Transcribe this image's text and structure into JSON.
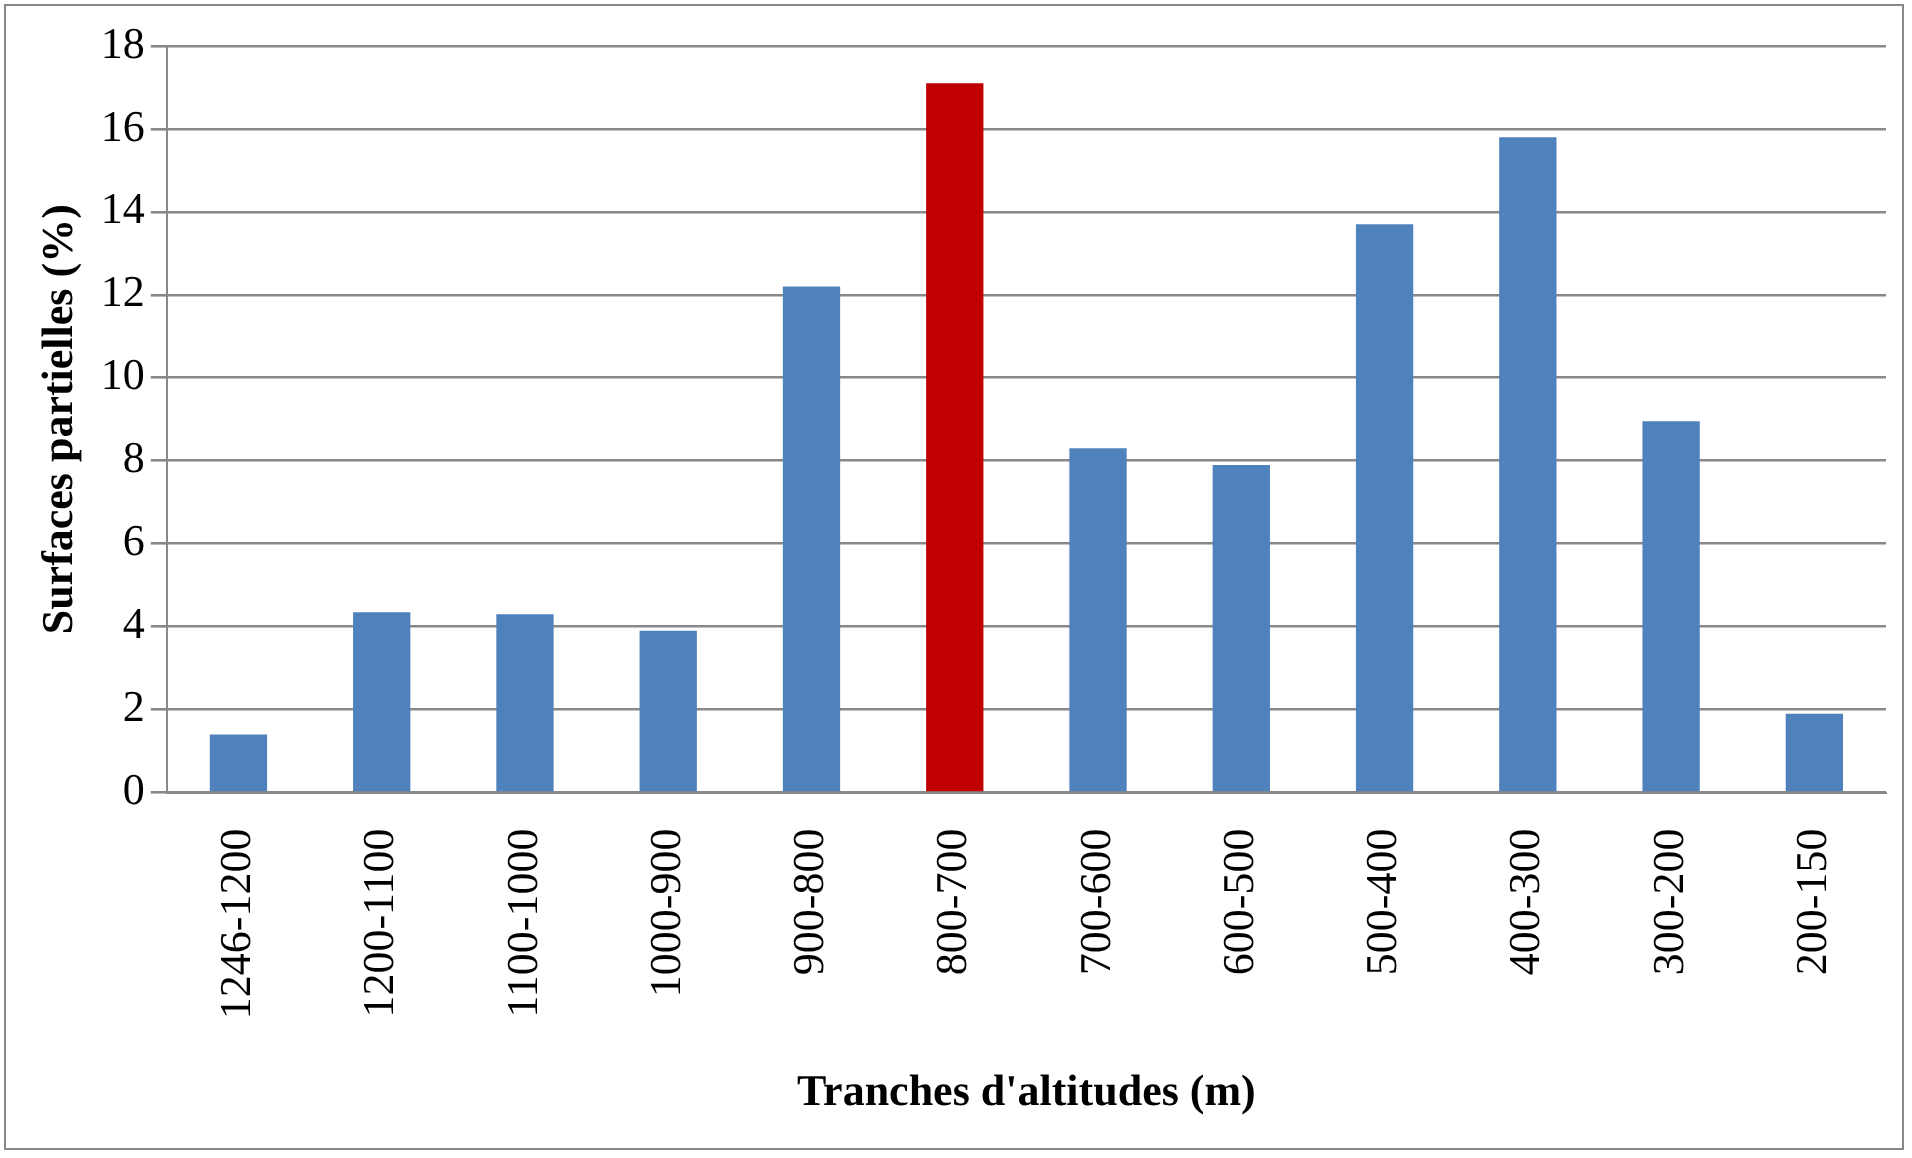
{
  "chart_data": {
    "type": "bar",
    "xlabel": "Tranches d'altitudes (m)",
    "ylabel": "Surfaces partielles (%)",
    "categories": [
      "1246-1200",
      "1200-1100",
      "1100-1000",
      "1000-900",
      "900-800",
      "800-700",
      "700-600",
      "600-500",
      "500-400",
      "400-300",
      "300-200",
      "200-150"
    ],
    "values": [
      1.4,
      4.35,
      4.3,
      3.9,
      12.2,
      17.1,
      8.3,
      7.9,
      13.7,
      15.8,
      8.95,
      1.9
    ],
    "colors": [
      "#4f81bd",
      "#4f81bd",
      "#4f81bd",
      "#4f81bd",
      "#4f81bd",
      "#c00000",
      "#4f81bd",
      "#4f81bd",
      "#4f81bd",
      "#4f81bd",
      "#4f81bd",
      "#4f81bd"
    ],
    "ylim": [
      0,
      18
    ],
    "yticks": [
      0,
      2,
      4,
      6,
      8,
      10,
      12,
      14,
      16,
      18
    ],
    "grid": "y",
    "legend": false
  }
}
